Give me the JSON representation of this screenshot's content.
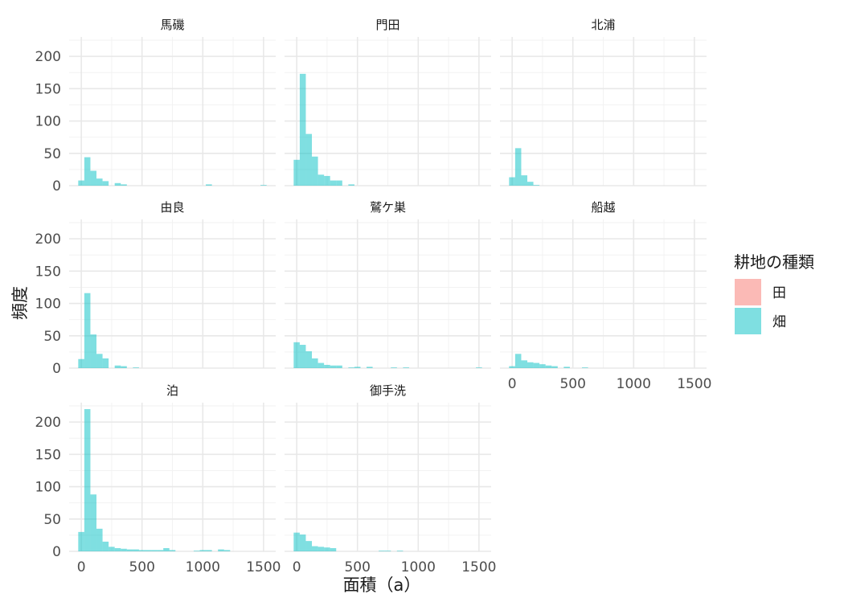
{
  "chart_data": {
    "type": "bar",
    "subtype": "faceted-histogram",
    "xlabel": "面積（a）",
    "ylabel": "頻度",
    "xlim": [
      -100,
      1600
    ],
    "ylim": [
      0,
      230
    ],
    "x_ticks": [
      0,
      500,
      1000,
      1500
    ],
    "y_ticks": [
      0,
      50,
      100,
      150,
      200
    ],
    "bin_width": 50,
    "grid": true,
    "legend": {
      "title": "耕地の種類",
      "placement": "right",
      "entries": [
        {
          "label": "田",
          "color": "#F8766D"
        },
        {
          "label": "畑",
          "color": "#00BFC4"
        }
      ]
    },
    "panels": [
      {
        "title": "馬磯",
        "bins": [
          [
            0,
            8
          ],
          [
            50,
            44
          ],
          [
            100,
            23
          ],
          [
            150,
            11
          ],
          [
            200,
            7
          ],
          [
            300,
            4
          ],
          [
            350,
            2
          ],
          [
            1050,
            2
          ],
          [
            1500,
            1
          ]
        ]
      },
      {
        "title": "門田",
        "bins": [
          [
            0,
            40
          ],
          [
            50,
            173
          ],
          [
            100,
            80
          ],
          [
            150,
            45
          ],
          [
            200,
            17
          ],
          [
            250,
            15
          ],
          [
            300,
            8
          ],
          [
            350,
            8
          ],
          [
            450,
            2
          ]
        ]
      },
      {
        "title": "北浦",
        "bins": [
          [
            0,
            13
          ],
          [
            50,
            58
          ],
          [
            100,
            16
          ],
          [
            150,
            6
          ],
          [
            200,
            1
          ]
        ]
      },
      {
        "title": "由良",
        "bins": [
          [
            0,
            14
          ],
          [
            50,
            116
          ],
          [
            100,
            52
          ],
          [
            150,
            22
          ],
          [
            200,
            15
          ],
          [
            300,
            4
          ],
          [
            350,
            3
          ],
          [
            450,
            1
          ]
        ]
      },
      {
        "title": "鷲ケ巣",
        "bins": [
          [
            0,
            40
          ],
          [
            50,
            36
          ],
          [
            100,
            26
          ],
          [
            150,
            15
          ],
          [
            200,
            8
          ],
          [
            250,
            5
          ],
          [
            300,
            4
          ],
          [
            350,
            4
          ],
          [
            450,
            1
          ],
          [
            500,
            2
          ],
          [
            600,
            2
          ],
          [
            800,
            1
          ],
          [
            900,
            1
          ],
          [
            1500,
            1
          ]
        ]
      },
      {
        "title": "船越",
        "bins": [
          [
            0,
            3
          ],
          [
            50,
            22
          ],
          [
            100,
            12
          ],
          [
            150,
            9
          ],
          [
            200,
            8
          ],
          [
            250,
            6
          ],
          [
            300,
            4
          ],
          [
            350,
            3
          ],
          [
            450,
            2
          ],
          [
            600,
            1
          ]
        ]
      },
      {
        "title": "泊",
        "bins": [
          [
            0,
            30
          ],
          [
            50,
            220
          ],
          [
            100,
            88
          ],
          [
            150,
            35
          ],
          [
            200,
            15
          ],
          [
            250,
            7
          ],
          [
            300,
            5
          ],
          [
            350,
            4
          ],
          [
            400,
            3
          ],
          [
            450,
            3
          ],
          [
            500,
            2
          ],
          [
            550,
            2
          ],
          [
            600,
            2
          ],
          [
            650,
            2
          ],
          [
            700,
            5
          ],
          [
            750,
            2
          ],
          [
            950,
            1
          ],
          [
            1000,
            2
          ],
          [
            1050,
            2
          ],
          [
            1150,
            3
          ],
          [
            1200,
            2
          ]
        ]
      },
      {
        "title": "御手洗",
        "bins": [
          [
            0,
            29
          ],
          [
            50,
            26
          ],
          [
            100,
            16
          ],
          [
            150,
            8
          ],
          [
            200,
            7
          ],
          [
            250,
            6
          ],
          [
            300,
            5
          ],
          [
            700,
            1
          ],
          [
            750,
            1
          ],
          [
            850,
            1
          ]
        ]
      }
    ]
  }
}
